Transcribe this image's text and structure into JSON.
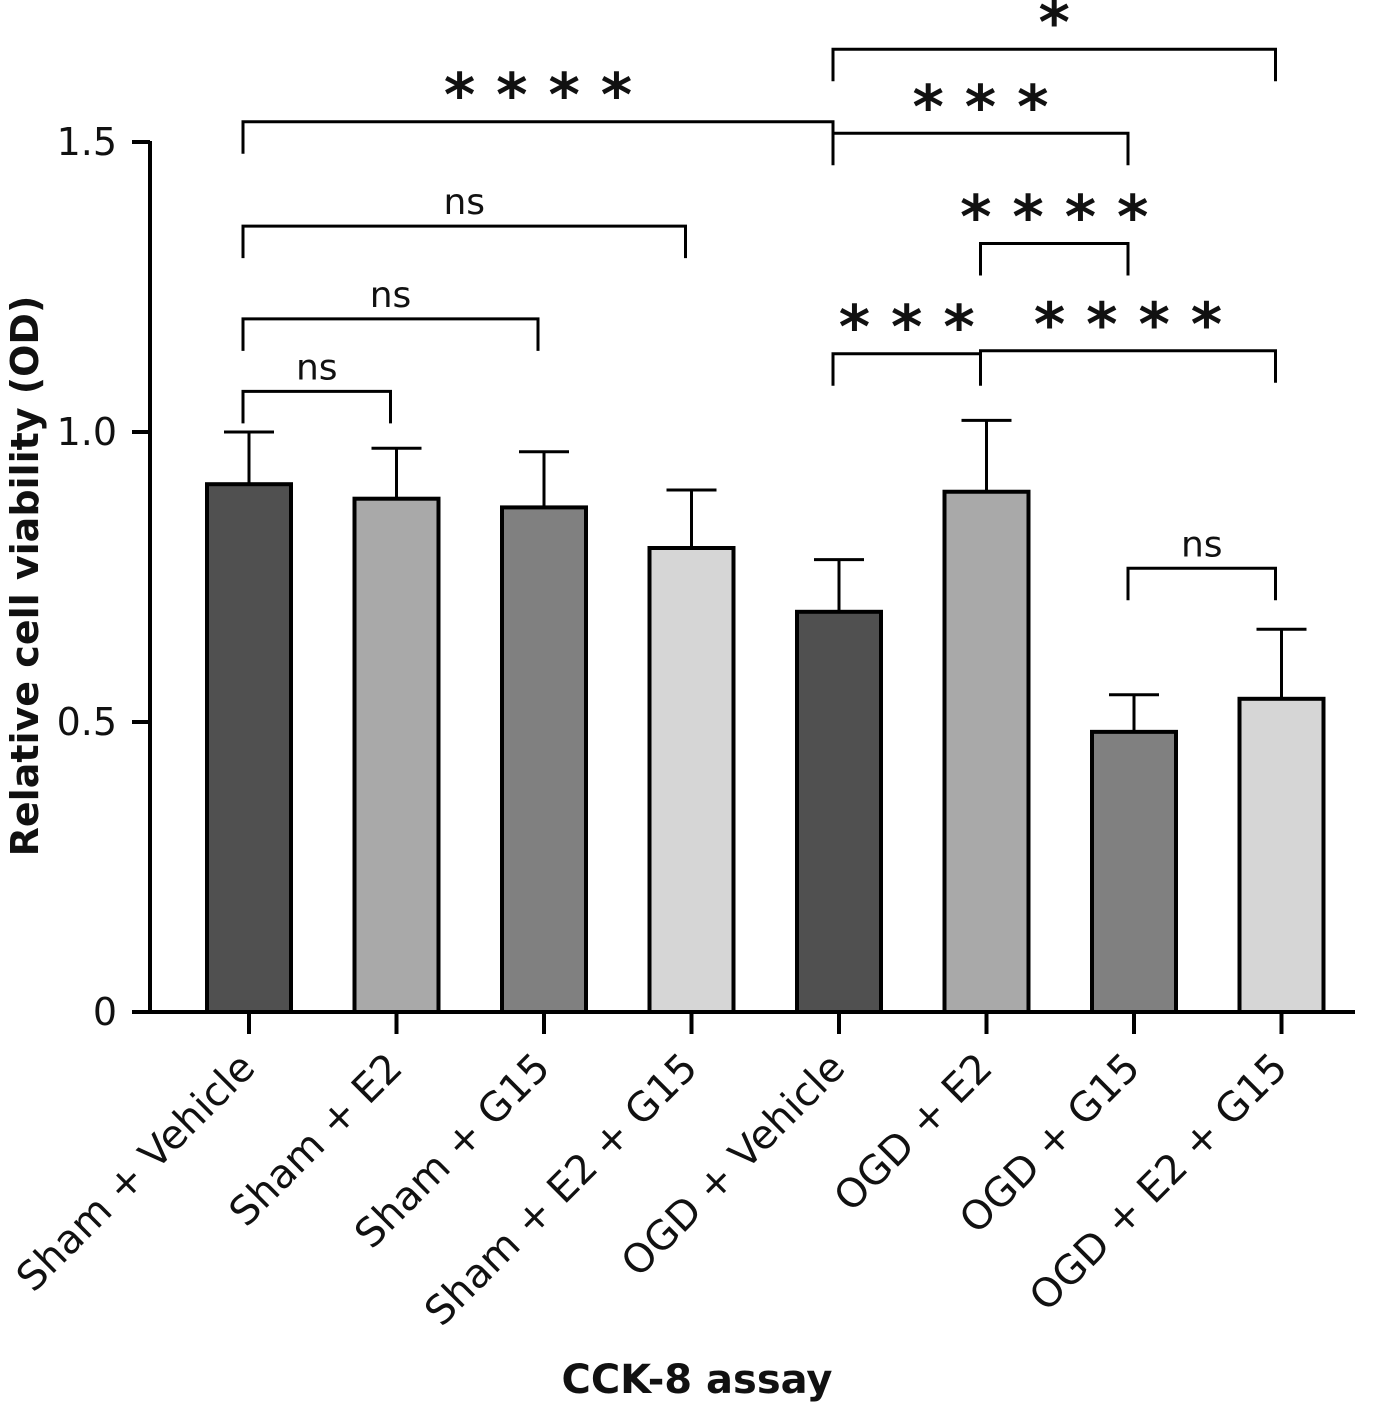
{
  "chart_data": {
    "type": "bar",
    "title": "",
    "xlabel": "CCK-8 assay",
    "ylabel": "Relative cell viability (OD)",
    "ylim": [
      0,
      1.5
    ],
    "yticks": [
      0,
      0.5,
      1.0,
      1.5
    ],
    "ytick_labels": [
      "0",
      "0.5",
      "1.0",
      "1.5"
    ],
    "grid": false,
    "legend": "none",
    "categories": [
      "Sham + Vehicle",
      "Sham + E2",
      "Sham + G15",
      "Sham + E2 + G15",
      "OGD + Vehicle",
      "OGD + E2",
      "OGD + G15",
      "OGD + E2 + G15"
    ],
    "values": [
      0.91,
      0.885,
      0.87,
      0.8,
      0.69,
      0.897,
      0.483,
      0.54
    ],
    "error_upper": [
      1.0,
      0.972,
      0.966,
      0.9,
      0.78,
      1.02,
      0.547,
      0.66
    ],
    "bar_colors": [
      "#505050",
      "#a9a9a9",
      "#808080",
      "#d6d6d6",
      "#505050",
      "#a9a9a9",
      "#808080",
      "#d6d6d6"
    ],
    "significance": [
      {
        "from": 0,
        "to": 1,
        "label": "ns",
        "level": 1.07
      },
      {
        "from": 0,
        "to": 2,
        "label": "ns",
        "level": 1.195
      },
      {
        "from": 0,
        "to": 3,
        "label": "ns",
        "level": 1.355
      },
      {
        "from": 0,
        "to": 4,
        "label": "* * * *",
        "level": 1.535
      },
      {
        "from": 4,
        "to": 5,
        "label": "* * *",
        "level": 1.135
      },
      {
        "from": 5,
        "to": 7,
        "label": "* * * *",
        "level": 1.14
      },
      {
        "from": 5,
        "to": 6,
        "label": "* * * *",
        "level": 1.325
      },
      {
        "from": 4,
        "to": 6,
        "label": "* * *",
        "level": 1.515
      },
      {
        "from": 4,
        "to": 7,
        "label": "*",
        "level": 1.66
      },
      {
        "from": 6,
        "to": 7,
        "label": "ns",
        "level": 0.765
      }
    ]
  }
}
